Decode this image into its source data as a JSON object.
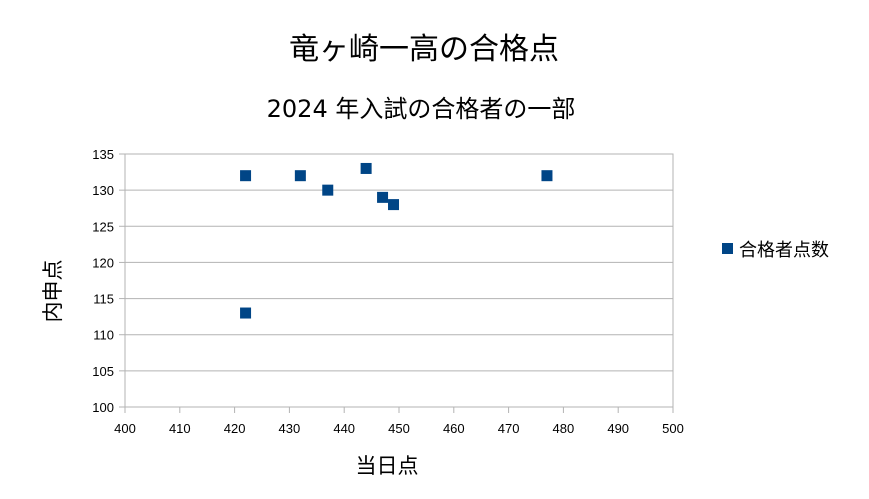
{
  "chart_data": {
    "type": "scatter",
    "title": "竜ヶ崎一高の合格点",
    "subtitle": "2024 年入試の合格者の一部",
    "xlabel": "当日点",
    "ylabel": "内申点",
    "xlim": [
      400,
      500
    ],
    "ylim": [
      100,
      135
    ],
    "xticks": [
      400,
      410,
      420,
      430,
      440,
      450,
      460,
      470,
      480,
      490,
      500
    ],
    "yticks": [
      100,
      105,
      110,
      115,
      120,
      125,
      130,
      135
    ],
    "grid": "horizontal",
    "legend_position": "right",
    "series": [
      {
        "name": "合格者点数",
        "color": "#004586",
        "marker": "square",
        "points": [
          {
            "x": 422,
            "y": 132
          },
          {
            "x": 422,
            "y": 113
          },
          {
            "x": 432,
            "y": 132
          },
          {
            "x": 437,
            "y": 130
          },
          {
            "x": 444,
            "y": 133
          },
          {
            "x": 447,
            "y": 129
          },
          {
            "x": 449,
            "y": 128
          },
          {
            "x": 477,
            "y": 132
          }
        ]
      }
    ]
  }
}
